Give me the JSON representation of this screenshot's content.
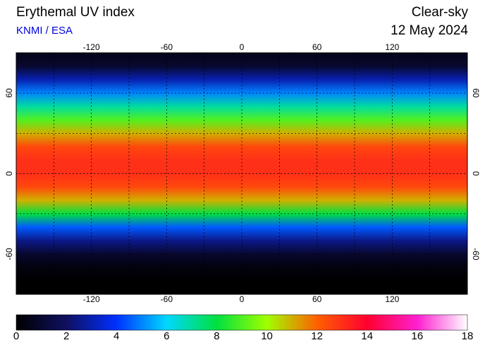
{
  "map": {
    "title": "Erythemal UV index",
    "source": "KNMI / ESA",
    "condition": "Clear-sky",
    "date": "12 May 2024",
    "xlim": [
      -180,
      180
    ],
    "ylim": [
      -90,
      90
    ],
    "xticks": [
      -120,
      -60,
      0,
      60,
      120
    ],
    "yticks": [
      -60,
      0,
      60
    ],
    "grid": true,
    "zonal_profile": {
      "latitudes": [
        90,
        80,
        70,
        60,
        50,
        40,
        30,
        20,
        10,
        0,
        -10,
        -20,
        -30,
        -40,
        -50,
        -60,
        -70,
        -80,
        -90
      ],
      "values": [
        0.5,
        1,
        3,
        5,
        7,
        9,
        11,
        12.5,
        13,
        13,
        12.5,
        11,
        8,
        4.5,
        2.5,
        1,
        0.3,
        0,
        0
      ]
    },
    "colorbar": {
      "lim": [
        0,
        18
      ],
      "ticks": [
        0,
        2,
        4,
        6,
        8,
        10,
        12,
        14,
        16,
        18
      ],
      "colors": [
        "#000000",
        "#101060",
        "#0030ff",
        "#00d8ff",
        "#00e040",
        "#a0ff00",
        "#ff6000",
        "#ff0030",
        "#ff20d0",
        "#ffffff"
      ]
    }
  }
}
